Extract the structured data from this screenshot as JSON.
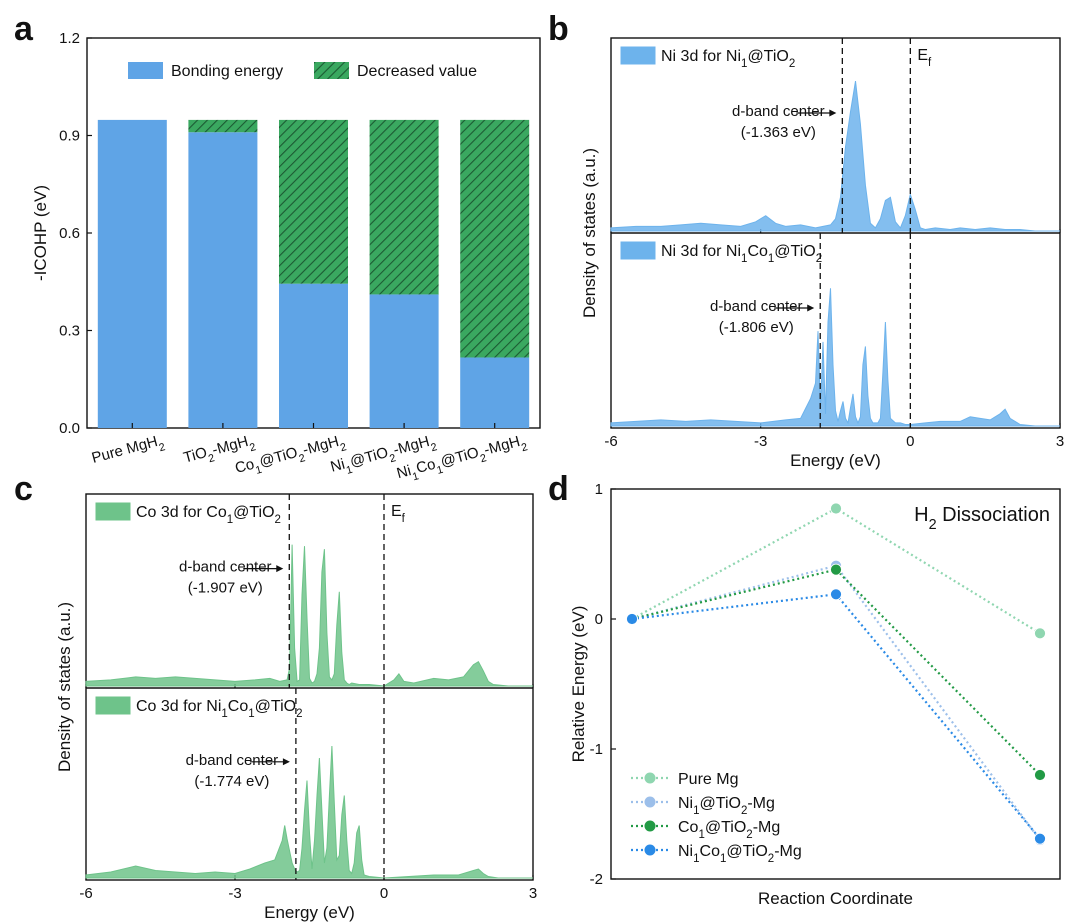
{
  "panels": {
    "a": "a",
    "b": "b",
    "c": "c",
    "d": "d"
  },
  "colors": {
    "bonding": "#5fa4e6",
    "decreased": "#3aa860",
    "ni_dos": "#6db3ec",
    "co_dos": "#6ec38a",
    "pure_mg": "#8fd6b0",
    "ni_tio2": "#9cbfea",
    "co_tio2": "#229a45",
    "nico_tio2": "#2a8ae6"
  },
  "chart_data": [
    {
      "id": "a",
      "type": "bar",
      "stacked": true,
      "ylabel": "-ICOHP (eV)",
      "xlabel": "",
      "ylim": [
        0.0,
        1.2
      ],
      "yticks": [
        "0.0",
        "0.3",
        "0.6",
        "0.9",
        "1.2"
      ],
      "categories": [
        "Pure MgH",
        "TiO-MgH",
        "Co@TiO-MgH",
        "Ni@TiO-MgH",
        "NiCo@TiO-MgH"
      ],
      "category_parts": [
        [
          [
            "Pure MgH",
            ""
          ],
          [
            "2",
            "sub"
          ]
        ],
        [
          [
            "TiO",
            ""
          ],
          [
            "2",
            "sub"
          ],
          [
            "-MgH",
            ""
          ],
          [
            "2",
            "sub"
          ]
        ],
        [
          [
            "Co",
            ""
          ],
          [
            "1",
            "sub"
          ],
          [
            "@TiO",
            ""
          ],
          [
            "2",
            "sub"
          ],
          [
            "-MgH",
            ""
          ],
          [
            "2",
            "sub"
          ]
        ],
        [
          [
            "Ni",
            ""
          ],
          [
            "1",
            "sub"
          ],
          [
            "@TiO",
            ""
          ],
          [
            "2",
            "sub"
          ],
          [
            "-MgH",
            ""
          ],
          [
            "2",
            "sub"
          ]
        ],
        [
          [
            "Ni",
            ""
          ],
          [
            "1",
            "sub"
          ],
          [
            "Co",
            ""
          ],
          [
            "1",
            "sub"
          ],
          [
            "@TiO",
            ""
          ],
          [
            "2",
            "sub"
          ],
          [
            "-MgH",
            ""
          ],
          [
            "2",
            "sub"
          ]
        ]
      ],
      "series": [
        {
          "name": "Bonding energy",
          "values": [
            0.948,
            0.91,
            0.444,
            0.411,
            0.217
          ]
        },
        {
          "name": "Decreased value",
          "values": [
            0.0,
            0.038,
            0.504,
            0.537,
            0.731
          ]
        }
      ],
      "legend": "top"
    },
    {
      "id": "b",
      "type": "area",
      "xlabel": "Energy (eV)",
      "ylabel": "Density of states (a.u.)",
      "xlim": [
        -6,
        3
      ],
      "xticks": [
        "-6",
        "-3",
        "0",
        "3"
      ],
      "fermi_label": [
        "E",
        "f"
      ],
      "subplots": [
        {
          "legend_parts": [
            [
              "Ni 3d for Ni",
              ""
            ],
            [
              "1",
              "sub"
            ],
            [
              "@TiO",
              ""
            ],
            [
              "2",
              "sub"
            ]
          ],
          "d_band_center_label": "d-band center",
          "d_band_center_value": "(-1.363 eV)",
          "d_band_center": -1.363,
          "ymax": 1.0,
          "x": [
            -6.0,
            -5.5,
            -5.0,
            -4.6,
            -4.2,
            -3.8,
            -3.4,
            -3.1,
            -2.9,
            -2.7,
            -2.5,
            -2.2,
            -1.9,
            -1.6,
            -1.5,
            -1.4,
            -1.3,
            -1.2,
            -1.1,
            -1.0,
            -0.9,
            -0.8,
            -0.7,
            -0.6,
            -0.5,
            -0.4,
            -0.3,
            -0.2,
            -0.1,
            0.0,
            0.1,
            0.2,
            0.3,
            0.5,
            0.8,
            1.0,
            1.3,
            1.6,
            1.9,
            2.2,
            2.5,
            3.0
          ],
          "y": [
            0.02,
            0.03,
            0.03,
            0.04,
            0.05,
            0.04,
            0.03,
            0.06,
            0.1,
            0.05,
            0.03,
            0.04,
            0.02,
            0.04,
            0.08,
            0.22,
            0.55,
            0.78,
            0.98,
            0.7,
            0.3,
            0.05,
            0.02,
            0.08,
            0.2,
            0.22,
            0.06,
            0.02,
            0.1,
            0.24,
            0.14,
            0.02,
            0.01,
            0.02,
            0.01,
            0.02,
            0.01,
            0.02,
            0.01,
            0.01,
            0.0,
            0.0
          ]
        },
        {
          "legend_parts": [
            [
              "Ni 3d for Ni",
              ""
            ],
            [
              "1",
              "sub"
            ],
            [
              "Co",
              ""
            ],
            [
              "1",
              "sub"
            ],
            [
              "@TiO",
              ""
            ],
            [
              "2",
              "sub"
            ]
          ],
          "d_band_center_label": "d-band center",
          "d_band_center_value": "(-1.806 eV)",
          "d_band_center": -1.806,
          "ymax": 1.0,
          "x": [
            -6.0,
            -5.5,
            -5.0,
            -4.5,
            -4.0,
            -3.5,
            -3.0,
            -2.5,
            -2.2,
            -2.0,
            -1.9,
            -1.85,
            -1.8,
            -1.75,
            -1.7,
            -1.65,
            -1.6,
            -1.55,
            -1.5,
            -1.45,
            -1.4,
            -1.35,
            -1.3,
            -1.25,
            -1.2,
            -1.15,
            -1.1,
            -1.05,
            -1.0,
            -0.95,
            -0.9,
            -0.85,
            -0.8,
            -0.75,
            -0.7,
            -0.65,
            -0.6,
            -0.55,
            -0.5,
            -0.45,
            -0.4,
            -0.3,
            -0.2,
            -0.1,
            0.0,
            0.3,
            0.6,
            1.0,
            1.2,
            1.4,
            1.6,
            1.8,
            1.9,
            2.0,
            2.2,
            2.5,
            3.0
          ],
          "y": [
            0.02,
            0.03,
            0.04,
            0.03,
            0.04,
            0.03,
            0.02,
            0.04,
            0.05,
            0.18,
            0.28,
            0.62,
            0.12,
            0.55,
            0.08,
            0.68,
            0.9,
            0.4,
            0.1,
            0.03,
            0.1,
            0.16,
            0.05,
            0.02,
            0.12,
            0.21,
            0.06,
            0.02,
            0.06,
            0.4,
            0.52,
            0.2,
            0.05,
            0.02,
            0.02,
            0.02,
            0.05,
            0.35,
            0.68,
            0.3,
            0.05,
            0.02,
            0.02,
            0.01,
            0.01,
            0.02,
            0.03,
            0.03,
            0.06,
            0.05,
            0.04,
            0.08,
            0.11,
            0.05,
            0.01,
            0.0,
            0.0
          ]
        }
      ]
    },
    {
      "id": "c",
      "type": "area",
      "xlabel": "Energy (eV)",
      "ylabel": "Density of states (a.u.)",
      "xlim": [
        -6,
        3
      ],
      "xticks": [
        "-6",
        "-3",
        "0",
        "3"
      ],
      "fermi_label": [
        "E",
        "f"
      ],
      "subplots": [
        {
          "legend_parts": [
            [
              "Co 3d for Co",
              ""
            ],
            [
              "1",
              "sub"
            ],
            [
              "@TiO",
              ""
            ],
            [
              "2",
              "sub"
            ]
          ],
          "d_band_center_label": "d-band center",
          "d_band_center_value": "(-1.907 eV)",
          "d_band_center": -1.907,
          "ymax": 1.0,
          "x": [
            -6.0,
            -5.5,
            -5.0,
            -4.6,
            -4.2,
            -3.8,
            -3.4,
            -3.0,
            -2.6,
            -2.3,
            -2.1,
            -1.95,
            -1.9,
            -1.85,
            -1.8,
            -1.75,
            -1.7,
            -1.65,
            -1.6,
            -1.55,
            -1.5,
            -1.45,
            -1.4,
            -1.35,
            -1.3,
            -1.25,
            -1.2,
            -1.15,
            -1.1,
            -1.05,
            -1.0,
            -0.95,
            -0.9,
            -0.85,
            -0.8,
            -0.75,
            -0.7,
            -0.65,
            -0.5,
            -0.3,
            0.0,
            0.2,
            0.3,
            0.4,
            0.6,
            1.0,
            1.3,
            1.6,
            1.8,
            1.9,
            2.0,
            2.1,
            2.2,
            2.5,
            3.0
          ],
          "y": [
            0.03,
            0.04,
            0.06,
            0.05,
            0.06,
            0.05,
            0.04,
            0.03,
            0.04,
            0.05,
            0.03,
            0.04,
            0.12,
            0.93,
            0.25,
            0.03,
            0.04,
            0.6,
            0.92,
            0.45,
            0.05,
            0.02,
            0.03,
            0.08,
            0.25,
            0.75,
            0.9,
            0.35,
            0.06,
            0.04,
            0.08,
            0.4,
            0.62,
            0.22,
            0.04,
            0.02,
            0.01,
            0.02,
            0.01,
            0.01,
            0.0,
            0.04,
            0.08,
            0.03,
            0.02,
            0.05,
            0.04,
            0.06,
            0.14,
            0.16,
            0.1,
            0.03,
            0.01,
            0.0,
            0.0
          ]
        },
        {
          "legend_parts": [
            [
              "Co 3d for Ni",
              ""
            ],
            [
              "1",
              "sub"
            ],
            [
              "Co",
              ""
            ],
            [
              "1",
              "sub"
            ],
            [
              "@TiO",
              ""
            ],
            [
              "2",
              "sub"
            ]
          ],
          "d_band_center_label": "d-band center",
          "d_band_center_value": "(-1.774 eV)",
          "d_band_center": -1.774,
          "ymax": 1.0,
          "x": [
            -6.0,
            -5.5,
            -5.0,
            -4.6,
            -4.2,
            -3.8,
            -3.4,
            -3.0,
            -2.7,
            -2.4,
            -2.2,
            -2.05,
            -2.0,
            -1.95,
            -1.9,
            -1.85,
            -1.8,
            -1.75,
            -1.7,
            -1.65,
            -1.6,
            -1.55,
            -1.5,
            -1.45,
            -1.4,
            -1.35,
            -1.3,
            -1.25,
            -1.2,
            -1.15,
            -1.1,
            -1.05,
            -1.0,
            -0.95,
            -0.9,
            -0.85,
            -0.8,
            -0.75,
            -0.7,
            -0.65,
            -0.6,
            -0.55,
            -0.5,
            -0.45,
            -0.4,
            -0.3,
            0.0,
            0.5,
            1.0,
            1.5,
            1.8,
            1.9,
            2.0,
            2.1,
            2.3,
            3.0
          ],
          "y": [
            0.02,
            0.04,
            0.08,
            0.05,
            0.04,
            0.03,
            0.04,
            0.03,
            0.06,
            0.1,
            0.12,
            0.25,
            0.35,
            0.26,
            0.18,
            0.1,
            0.06,
            0.04,
            0.05,
            0.2,
            0.45,
            0.65,
            0.3,
            0.06,
            0.25,
            0.55,
            0.8,
            0.45,
            0.1,
            0.2,
            0.55,
            0.88,
            0.5,
            0.12,
            0.15,
            0.42,
            0.55,
            0.25,
            0.05,
            0.03,
            0.1,
            0.3,
            0.35,
            0.12,
            0.02,
            0.01,
            0.0,
            0.01,
            0.02,
            0.02,
            0.05,
            0.06,
            0.03,
            0.01,
            0.0,
            0.0
          ]
        }
      ]
    },
    {
      "id": "d",
      "type": "line",
      "title_parts": [
        [
          "H",
          ""
        ],
        [
          "2",
          "sub"
        ],
        [
          " Dissociation",
          ""
        ]
      ],
      "xlabel": "Reaction Coordinate",
      "ylabel": "Relative Energy (eV)",
      "ylim": [
        -2,
        1
      ],
      "yticks": [
        "-2",
        "-1",
        "0",
        "1"
      ],
      "x": [
        0,
        1,
        2
      ],
      "legend": "bottom-left",
      "series": [
        {
          "name": "Pure Mg",
          "name_parts": [
            [
              "Pure Mg",
              ""
            ]
          ],
          "values": [
            0.0,
            0.85,
            -0.11
          ]
        },
        {
          "name": "Ni@TiO-Mg",
          "name_parts": [
            [
              "Ni",
              ""
            ],
            [
              "1",
              "sub"
            ],
            [
              "@TiO",
              ""
            ],
            [
              "2",
              "sub"
            ],
            [
              "-Mg",
              ""
            ]
          ],
          "values": [
            0.0,
            0.41,
            -1.7
          ]
        },
        {
          "name": "Co@TiO-Mg",
          "name_parts": [
            [
              "Co",
              ""
            ],
            [
              "1",
              "sub"
            ],
            [
              "@TiO",
              ""
            ],
            [
              "2",
              "sub"
            ],
            [
              "-Mg",
              ""
            ]
          ],
          "values": [
            0.0,
            0.38,
            -1.2
          ]
        },
        {
          "name": "NiCo@TiO-Mg",
          "name_parts": [
            [
              "Ni",
              ""
            ],
            [
              "1",
              "sub"
            ],
            [
              "Co",
              ""
            ],
            [
              "1",
              "sub"
            ],
            [
              "@TiO",
              ""
            ],
            [
              "2",
              "sub"
            ],
            [
              "-Mg",
              ""
            ]
          ],
          "values": [
            0.0,
            0.19,
            -1.69
          ]
        }
      ]
    }
  ]
}
